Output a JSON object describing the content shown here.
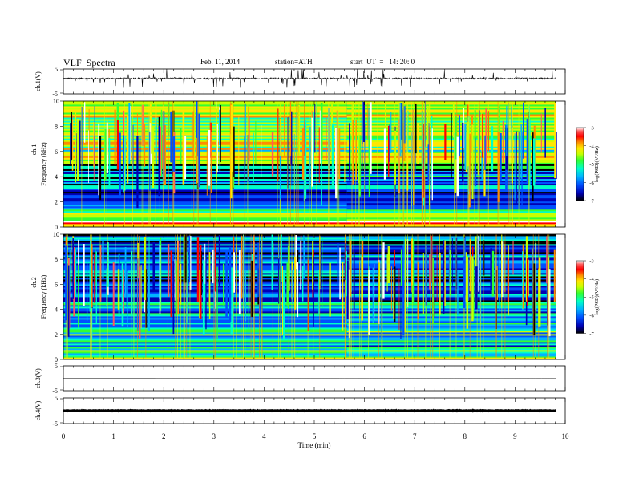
{
  "header": {
    "title": "VLF  Spectra",
    "date": "Feb. 11, 2014",
    "station": "station=ATH",
    "start": "start  UT  =   14: 20: 0"
  },
  "colors": {
    "background": "#ffffff",
    "axis": "#000000",
    "colormap": [
      "#000000",
      "#0000b4",
      "#0050ff",
      "#00b4ff",
      "#00ffc8",
      "#32ff32",
      "#c8ff00",
      "#ffe600",
      "#ff8c00",
      "#ff0000",
      "#ff5a5a",
      "#ffffff"
    ]
  },
  "chart_data": [
    {
      "type": "line",
      "id": "ch1-waveform",
      "ylabel": "ch.1(V)",
      "ylim": [
        -5,
        5
      ],
      "yticks": [
        "5",
        "-5"
      ],
      "xlim": [
        0,
        10
      ],
      "series": [
        {
          "values": "noisy voltage trace, baseline about 1.2 V, frequent spikes down to about -2 V",
          "baseline": 1.2,
          "noise": 0.3,
          "spike_min": -2.0
        }
      ],
      "x_end": 9.82
    },
    {
      "type": "heatmap",
      "id": "ch1-spectrogram",
      "ylabel_top": "ch.1",
      "ylabel": "Frequency  (kHz)",
      "ylim": [
        0,
        10
      ],
      "yticks": [
        "0",
        "2",
        "4",
        "6",
        "8",
        "10"
      ],
      "xlim": [
        0,
        10
      ],
      "x_end": 9.82,
      "colorbar": {
        "label": "log(PSD)(V²/Hz)",
        "ticks": [
          "-3",
          "-4",
          "-5",
          "-6",
          "-7"
        ],
        "range": [
          -7,
          -3
        ]
      },
      "regimes": [
        {
          "from_khz": 0.2,
          "to_khz": 0.5,
          "level": -3.5
        },
        {
          "from_khz": 0.5,
          "to_khz": 1.4,
          "level": -5.4
        },
        {
          "from_khz": 1.4,
          "to_khz": 5.0,
          "level": -6.2
        },
        {
          "from_khz": 5.0,
          "to_khz": 10.0,
          "level": -5.0
        }
      ],
      "transition_min": 5.65
    },
    {
      "type": "heatmap",
      "id": "ch2-spectrogram",
      "ylabel_top": "ch.2",
      "ylabel": "Frequency  (kHz)",
      "ylim": [
        0,
        10
      ],
      "yticks": [
        "0",
        "2",
        "4",
        "6",
        "8",
        "10"
      ],
      "xlim": [
        0,
        10
      ],
      "x_end": 9.82,
      "colorbar": {
        "label": "log(PSD)(V²/Hz)",
        "ticks": [
          "-3",
          "-4",
          "-5",
          "-6",
          "-7"
        ],
        "range": [
          -7,
          -3
        ]
      },
      "regimes": [
        {
          "from_khz": 0.0,
          "to_khz": 0.3,
          "level": -5.2
        },
        {
          "from_khz": 0.3,
          "to_khz": 2.4,
          "level": -5.6
        },
        {
          "from_khz": 2.4,
          "to_khz": 5.2,
          "level": -6.0
        },
        {
          "from_khz": 5.2,
          "to_khz": 10.0,
          "level": -6.4
        }
      ],
      "transition_min": 5.65
    },
    {
      "type": "line",
      "id": "ch3-waveform",
      "ylabel": "ch.3(V)",
      "ylim": [
        -5,
        5
      ],
      "yticks": [
        "5",
        "-5"
      ],
      "xlim": [
        0,
        10
      ],
      "series": [
        {
          "values": "flat trace near 0 V",
          "baseline": 0.0,
          "noise": 0.05
        }
      ],
      "x_end": 9.82
    },
    {
      "type": "line",
      "id": "ch4-waveform",
      "ylabel": "ch.4(V)",
      "ylim": [
        -5,
        5
      ],
      "yticks": [
        "5",
        "-5"
      ],
      "xlim": [
        0,
        10
      ],
      "series": [
        {
          "values": "thick flat trace near 0 V",
          "baseline": 0.0,
          "noise": 0.1
        }
      ],
      "x_end": 9.82,
      "xlabel": "Time  (min)",
      "xticks": [
        "0",
        "1",
        "2",
        "3",
        "4",
        "5",
        "6",
        "7",
        "8",
        "9",
        "10"
      ]
    }
  ]
}
